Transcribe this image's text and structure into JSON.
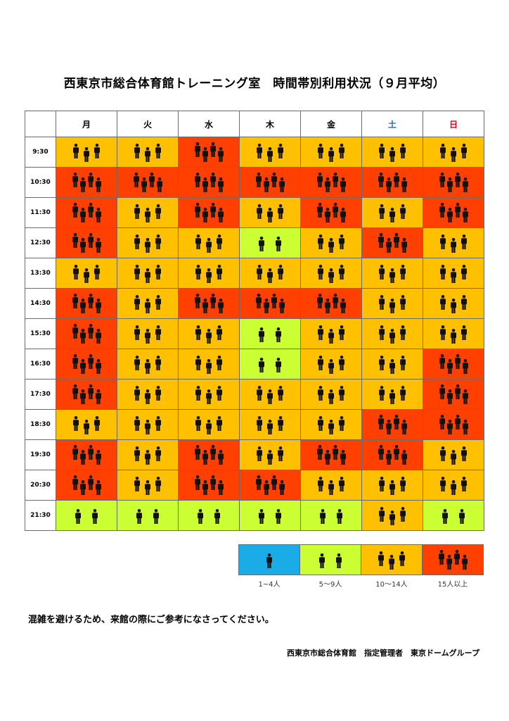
{
  "title": "西東京市総合体育館トレーニング室　時間帯別利用状況（９月平均）",
  "colors": {
    "level1": "#1aace6",
    "level2": "#ccff33",
    "level3": "#ffc000",
    "level4": "#ff4000",
    "saturday": "#1f6fbf",
    "sunday": "#e60012",
    "weekday": "#000000"
  },
  "icon": "person-icon",
  "days": [
    {
      "label": "月",
      "type": "weekday"
    },
    {
      "label": "火",
      "type": "weekday"
    },
    {
      "label": "水",
      "type": "weekday"
    },
    {
      "label": "木",
      "type": "weekday"
    },
    {
      "label": "金",
      "type": "weekday"
    },
    {
      "label": "土",
      "type": "saturday"
    },
    {
      "label": "日",
      "type": "sunday"
    }
  ],
  "rows": [
    {
      "time": "9:30",
      "levels": [
        3,
        3,
        4,
        3,
        3,
        3,
        3
      ]
    },
    {
      "time": "10:30",
      "levels": [
        4,
        4,
        4,
        4,
        4,
        4,
        4
      ]
    },
    {
      "time": "11:30",
      "levels": [
        4,
        3,
        4,
        3,
        4,
        3,
        4
      ]
    },
    {
      "time": "12:30",
      "levels": [
        4,
        3,
        3,
        2,
        3,
        4,
        3
      ]
    },
    {
      "time": "13:30",
      "levels": [
        3,
        3,
        3,
        3,
        3,
        3,
        3
      ]
    },
    {
      "time": "14:30",
      "levels": [
        4,
        3,
        4,
        4,
        4,
        3,
        3
      ]
    },
    {
      "time": "15:30",
      "levels": [
        4,
        3,
        3,
        2,
        3,
        3,
        3
      ]
    },
    {
      "time": "16:30",
      "levels": [
        4,
        3,
        3,
        2,
        3,
        3,
        4
      ]
    },
    {
      "time": "17:30",
      "levels": [
        4,
        3,
        3,
        3,
        3,
        3,
        4
      ]
    },
    {
      "time": "18:30",
      "levels": [
        3,
        3,
        3,
        3,
        3,
        4,
        4
      ]
    },
    {
      "time": "19:30",
      "levels": [
        4,
        3,
        4,
        3,
        4,
        4,
        3
      ]
    },
    {
      "time": "20:30",
      "levels": [
        4,
        3,
        4,
        4,
        3,
        3,
        3
      ]
    },
    {
      "time": "21:30",
      "levels": [
        2,
        2,
        2,
        2,
        2,
        3,
        2
      ]
    }
  ],
  "legend": [
    {
      "level": 1,
      "label": "1~4人"
    },
    {
      "level": 2,
      "label": "5〜9人"
    },
    {
      "level": 3,
      "label": "10〜14人"
    },
    {
      "level": 4,
      "label": "15人以上"
    }
  ],
  "note": "混雑を避けるため、来館の際にご参考になさってください。",
  "footer": "西東京市総合体育館　指定管理者　東京ドームグループ"
}
